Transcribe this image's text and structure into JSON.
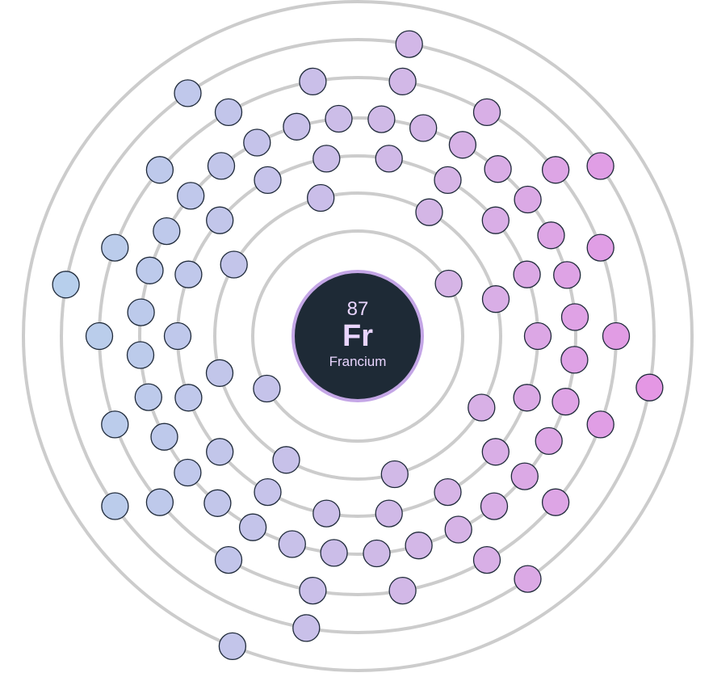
{
  "element": {
    "atomic_number": "87",
    "symbol": "Fr",
    "name": "Francium"
  },
  "shells": [
    {
      "electrons": 2
    },
    {
      "electrons": 8
    },
    {
      "electrons": 18
    },
    {
      "electrons": 32
    },
    {
      "electrons": 18
    },
    {
      "electrons": 8
    },
    {
      "electrons": 1
    }
  ],
  "colors": {
    "background": "#ffffff",
    "shell_ring": "#cccccc",
    "nucleus_fill": "#1e2a36",
    "nucleus_border": "#c4a6e6",
    "nucleus_text": "#e9d5ff",
    "electron_stroke": "#1f2a3a",
    "electron_gradient": [
      "#b6d0ec",
      "#c4c4ea",
      "#d6b4e6",
      "#e496e4"
    ]
  }
}
